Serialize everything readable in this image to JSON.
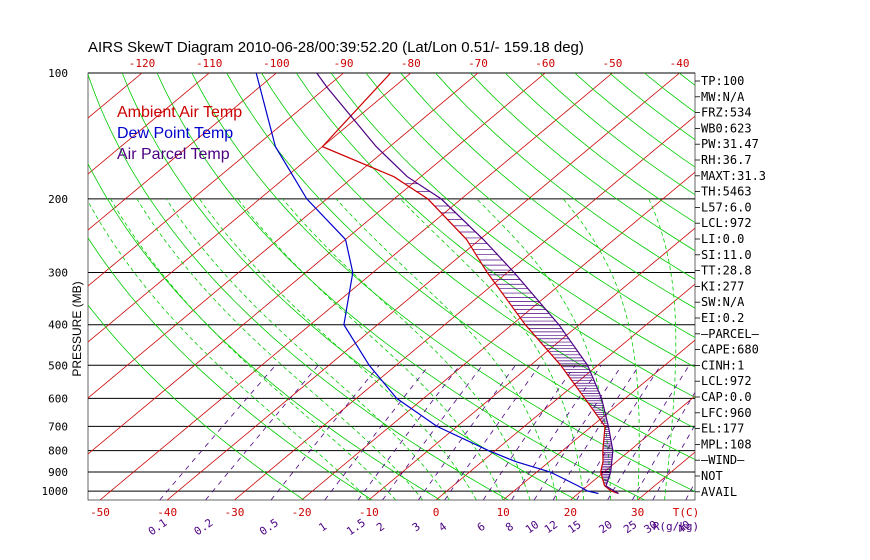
{
  "chart_data": {
    "type": "line",
    "title": "AIRS SkewT Diagram 2010-06-28/00:39:52.20 (Lat/Lon 0.51/- 159.18 deg)",
    "ylabel": "PRESSURE (MB)",
    "xlabel": "T(C)",
    "mixing_ratio_unit": "R(g/kg)",
    "y_scale": "log",
    "ylim": [
      1050,
      100
    ],
    "pressure_ticks": [
      100,
      200,
      300,
      400,
      500,
      600,
      700,
      800,
      900,
      1000
    ],
    "temp_ticks_bottom": [
      -50,
      -40,
      -30,
      -20,
      -10,
      0,
      10,
      20,
      30
    ],
    "temp_ticks_top": [
      -120,
      -110,
      -100,
      -90,
      -80,
      -70,
      -60,
      -50,
      -40
    ],
    "mixing_ratio_labels": [
      "0.1",
      "0.2",
      "0.5",
      "1",
      "1.5",
      "2",
      "3",
      "4",
      "6",
      "8",
      "10",
      "12",
      "15",
      "20",
      "25",
      "30",
      "40"
    ],
    "legend": [
      {
        "label": "Ambient Air Temp",
        "color": "#cc0000"
      },
      {
        "label": "Dew Point Temp",
        "color": "#0000cc"
      },
      {
        "label": "Air Parcel Temp",
        "color": "#4b0082"
      }
    ],
    "series": [
      {
        "name": "Ambient Air Temp",
        "color": "#cc0000",
        "points": [
          {
            "p": 1013,
            "t": 26.0
          },
          {
            "p": 1000,
            "t": 24.5
          },
          {
            "p": 970,
            "t": 22.5
          },
          {
            "p": 900,
            "t": 19.5
          },
          {
            "p": 850,
            "t": 18.0
          },
          {
            "p": 800,
            "t": 16.0
          },
          {
            "p": 700,
            "t": 12.0
          },
          {
            "p": 600,
            "t": 4.0
          },
          {
            "p": 500,
            "t": -5.5
          },
          {
            "p": 400,
            "t": -18.0
          },
          {
            "p": 300,
            "t": -33.0
          },
          {
            "p": 250,
            "t": -42.0
          },
          {
            "p": 200,
            "t": -55.0
          },
          {
            "p": 177,
            "t": -64.0
          },
          {
            "p": 150,
            "t": -80.0
          },
          {
            "p": 100,
            "t": -83.0
          }
        ]
      },
      {
        "name": "Dew Point Temp",
        "color": "#0000cc",
        "points": [
          {
            "p": 1013,
            "t": 23.0
          },
          {
            "p": 1000,
            "t": 21.0
          },
          {
            "p": 970,
            "t": 18.5
          },
          {
            "p": 900,
            "t": 12.0
          },
          {
            "p": 850,
            "t": 5.0
          },
          {
            "p": 800,
            "t": -1.0
          },
          {
            "p": 700,
            "t": -13.0
          },
          {
            "p": 600,
            "t": -24.0
          },
          {
            "p": 500,
            "t": -34.0
          },
          {
            "p": 400,
            "t": -45.0
          },
          {
            "p": 300,
            "t": -53.0
          },
          {
            "p": 250,
            "t": -60.0
          },
          {
            "p": 200,
            "t": -73.0
          },
          {
            "p": 150,
            "t": -87.0
          },
          {
            "p": 100,
            "t": -103.0
          }
        ]
      },
      {
        "name": "Air Parcel Temp",
        "color": "#4b0082",
        "points": [
          {
            "p": 1013,
            "t": 26.0
          },
          {
            "p": 972,
            "t": 22.8
          },
          {
            "p": 900,
            "t": 21.0
          },
          {
            "p": 800,
            "t": 17.5
          },
          {
            "p": 700,
            "t": 12.5
          },
          {
            "p": 600,
            "t": 6.5
          },
          {
            "p": 500,
            "t": -1.5
          },
          {
            "p": 400,
            "t": -13.0
          },
          {
            "p": 300,
            "t": -29.0
          },
          {
            "p": 250,
            "t": -39.5
          },
          {
            "p": 200,
            "t": -53.0
          },
          {
            "p": 177,
            "t": -62.0
          },
          {
            "p": 150,
            "t": -72.0
          },
          {
            "p": 108,
            "t": -90.0
          },
          {
            "p": 100,
            "t": -94.0
          }
        ]
      }
    ]
  },
  "indices": [
    "TP:100",
    "MW:N/A",
    "FRZ:534",
    "WB0:623",
    "PW:31.47",
    "RH:36.7",
    "MAXT:31.3",
    "TH:5463",
    "L57:6.0",
    "LCL:972",
    "LI:0.0",
    "SI:11.0",
    "TT:28.8",
    "KI:277",
    "SW:N/A",
    "EI:0.2",
    "—PARCEL—",
    "CAPE:680",
    "CINH:1",
    "LCL:972",
    "CAP:0.0",
    "LFC:960",
    "EL:177",
    "MPL:108",
    "—WIND—",
    "NOT",
    "AVAIL"
  ],
  "colors": {
    "dry_adiabat": "#00cc00",
    "moist_adiabat": "#00cc00",
    "isotherm": "#cc0000",
    "mixing_ratio": "#4b0082",
    "isobar": "#000000",
    "tick_labels": "#cc0000"
  }
}
